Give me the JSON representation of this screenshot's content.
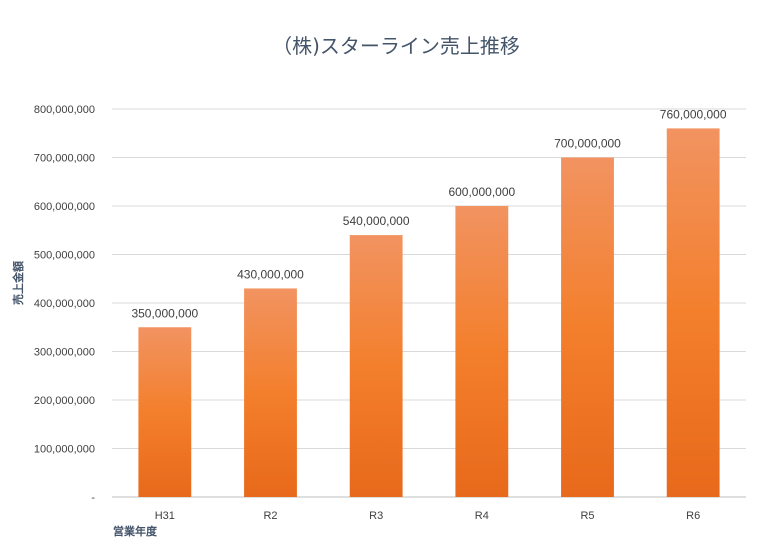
{
  "chart_data": {
    "type": "bar",
    "title": "（株)スターライン売上推移",
    "xlabel": "営業年度",
    "ylabel": "売上金額",
    "categories": [
      "H31",
      "R2",
      "R3",
      "R4",
      "R5",
      "R6"
    ],
    "values": [
      350000000,
      430000000,
      540000000,
      600000000,
      700000000,
      760000000
    ],
    "data_labels": [
      "350,000,000",
      "430,000,000",
      "540,000,000",
      "600,000,000",
      "700,000,000",
      "760,000,000"
    ],
    "ylim": [
      0,
      800000000
    ],
    "yticks": [
      0,
      100000000,
      200000000,
      300000000,
      400000000,
      500000000,
      600000000,
      700000000,
      800000000
    ],
    "ytick_labels": [
      "-",
      "100,000,000",
      "200,000,000",
      "300,000,000",
      "400,000,000",
      "500,000,000",
      "600,000,000",
      "700,000,000",
      "800,000,000"
    ],
    "grid": true,
    "legend": "none",
    "colors": {
      "bar_top": "#f29361",
      "bar_mid": "#f37f2c",
      "bar_bottom": "#e8691b"
    }
  }
}
